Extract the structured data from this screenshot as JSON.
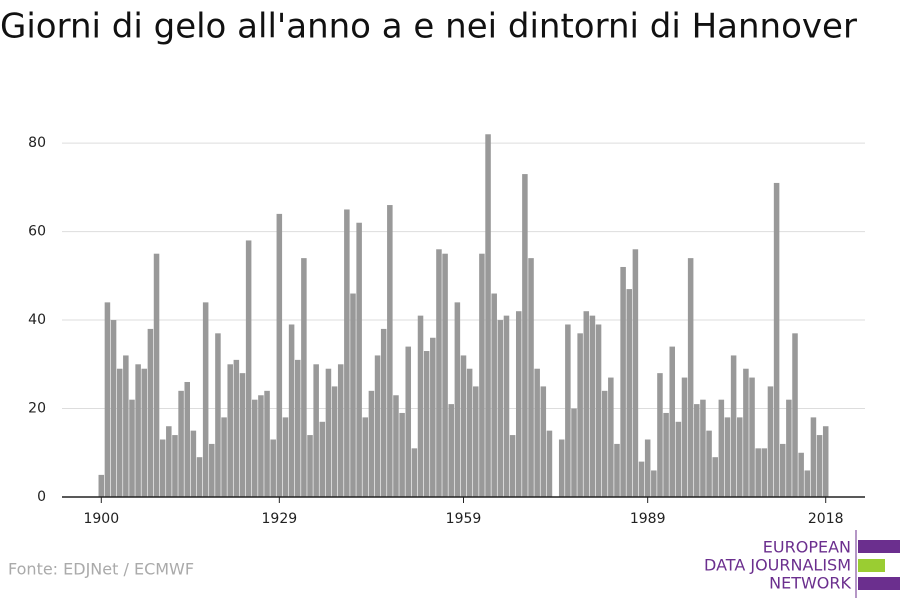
{
  "chart_data": {
    "type": "bar",
    "title": "Giorni di gelo all'anno a e nei dintorni di Hannover",
    "source": "Fonte: EDJNet / ECMWF",
    "logo": [
      "EUROPEAN",
      "DATA JOURNALISM",
      "NETWORK"
    ],
    "color": "#999999",
    "x": [
      1900,
      1901,
      1902,
      1903,
      1904,
      1905,
      1906,
      1907,
      1908,
      1909,
      1910,
      1911,
      1912,
      1913,
      1914,
      1915,
      1916,
      1917,
      1918,
      1919,
      1920,
      1921,
      1922,
      1923,
      1924,
      1925,
      1926,
      1927,
      1928,
      1929,
      1930,
      1931,
      1932,
      1933,
      1934,
      1935,
      1936,
      1937,
      1938,
      1939,
      1940,
      1941,
      1942,
      1943,
      1944,
      1945,
      1946,
      1947,
      1948,
      1949,
      1950,
      1951,
      1952,
      1953,
      1954,
      1955,
      1956,
      1957,
      1958,
      1959,
      1960,
      1961,
      1962,
      1963,
      1964,
      1965,
      1966,
      1967,
      1968,
      1969,
      1970,
      1971,
      1972,
      1973,
      1974,
      1975,
      1976,
      1977,
      1978,
      1979,
      1980,
      1981,
      1982,
      1983,
      1984,
      1985,
      1986,
      1987,
      1988,
      1989,
      1990,
      1991,
      1992,
      1993,
      1994,
      1995,
      1996,
      1997,
      1998,
      1999,
      2000,
      2001,
      2002,
      2003,
      2004,
      2005,
      2006,
      2007,
      2008,
      2009,
      2010,
      2011,
      2012,
      2013,
      2014,
      2015,
      2016,
      2017,
      2018
    ],
    "values": [
      5,
      44,
      40,
      29,
      32,
      22,
      30,
      29,
      38,
      55,
      13,
      16,
      14,
      24,
      26,
      15,
      9,
      44,
      12,
      37,
      18,
      30,
      31,
      28,
      58,
      22,
      23,
      24,
      13,
      64,
      18,
      39,
      31,
      54,
      14,
      30,
      17,
      29,
      25,
      30,
      65,
      46,
      62,
      18,
      24,
      32,
      38,
      66,
      23,
      19,
      34,
      11,
      41,
      33,
      36,
      56,
      55,
      21,
      44,
      32,
      29,
      25,
      55,
      82,
      46,
      40,
      41,
      14,
      42,
      73,
      54,
      29,
      25,
      15,
      null,
      13,
      39,
      20,
      37,
      42,
      41,
      39,
      24,
      27,
      12,
      52,
      47,
      56,
      8,
      13,
      6,
      28,
      19,
      34,
      17,
      27,
      54,
      21,
      22,
      15,
      9,
      22,
      18,
      32,
      18,
      29,
      27,
      11,
      11,
      25,
      71,
      12,
      22,
      37,
      10,
      6,
      18,
      14,
      16
    ],
    "xlim": [
      1893.6,
      2024.4
    ],
    "xticks": [
      1900,
      1929,
      1959,
      1989,
      2018
    ],
    "ylim": [
      0,
      85
    ],
    "yticks": [
      0,
      20,
      40,
      60,
      80
    ],
    "grid": true
  }
}
